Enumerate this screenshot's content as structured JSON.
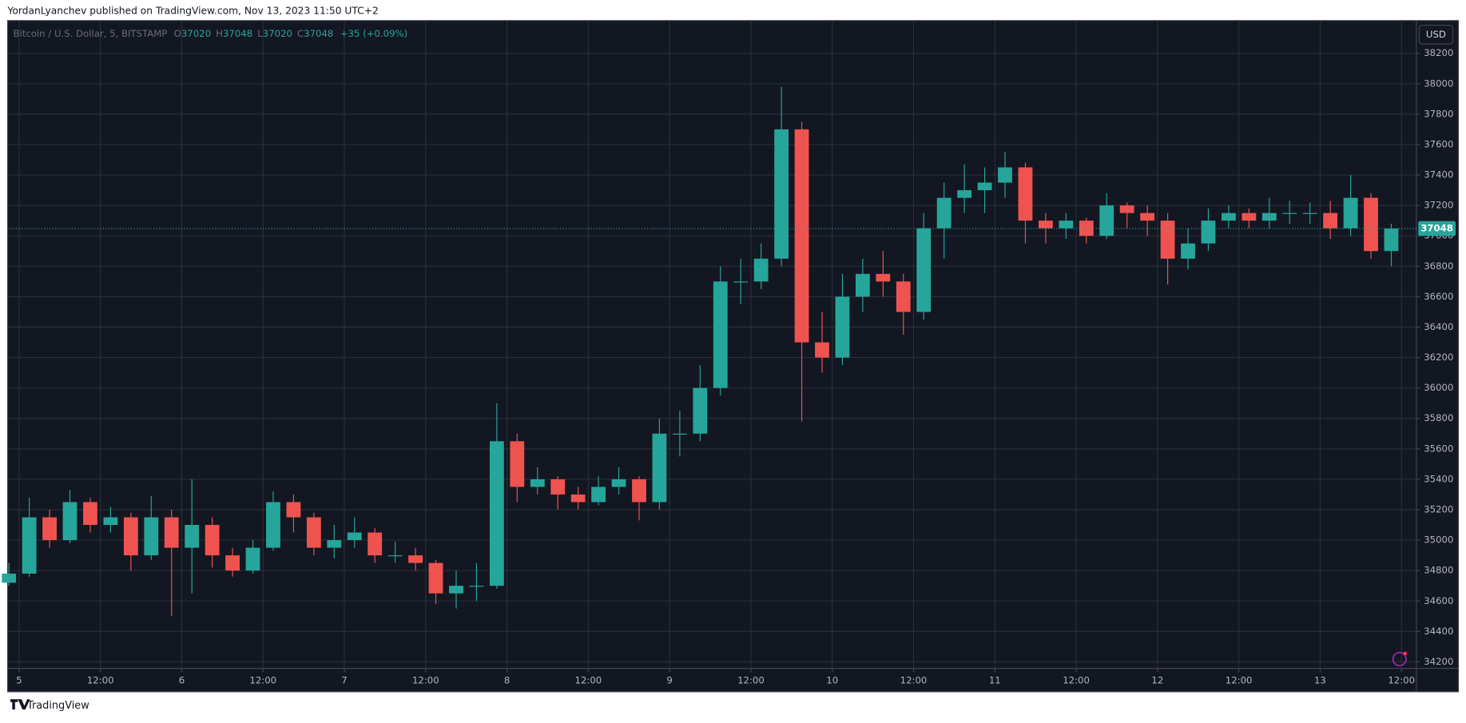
{
  "header": {
    "text": "YordanLyanchev published on TradingView.com, Nov 13, 2023 11:50 UTC+2"
  },
  "footer": {
    "logo": "TradingView"
  },
  "currency_button": "USD",
  "legend": {
    "symbol": "Bitcoin / U.S. Dollar, 5, BITSTAMP",
    "o": "O",
    "o_value": "37020",
    "h": "H",
    "h_value": "37048",
    "l": "L",
    "l_value": "37020",
    "c": "C",
    "c_value": "37048",
    "change": "+35 (+0.09%)"
  },
  "chart_data": {
    "type": "candlestick",
    "up_color": "#26a69a",
    "down_color": "#ef5350",
    "grid": true,
    "last_price": 37048,
    "xlim": [
      -1.7,
      206.2
    ],
    "ylim": [
      34157,
      38415
    ],
    "xticks": [
      {
        "value": 0,
        "label": "5"
      },
      {
        "value": 12,
        "label": "12:00"
      },
      {
        "value": 24,
        "label": "6"
      },
      {
        "value": 36,
        "label": "12:00"
      },
      {
        "value": 48,
        "label": "7"
      },
      {
        "value": 60,
        "label": "12:00"
      },
      {
        "value": 72,
        "label": "8"
      },
      {
        "value": 84,
        "label": "12:00"
      },
      {
        "value": 96,
        "label": "9"
      },
      {
        "value": 108,
        "label": "12:00"
      },
      {
        "value": 120,
        "label": "10"
      },
      {
        "value": 132,
        "label": "12:00"
      },
      {
        "value": 144,
        "label": "11"
      },
      {
        "value": 156,
        "label": "12:00"
      },
      {
        "value": 168,
        "label": "12"
      },
      {
        "value": 180,
        "label": "12:00"
      },
      {
        "value": 192,
        "label": "13"
      },
      {
        "value": 204,
        "label": "12:00"
      }
    ],
    "yticks": [
      34200,
      34400,
      34600,
      34800,
      35000,
      35200,
      35400,
      35600,
      35800,
      36000,
      36200,
      36400,
      36600,
      36800,
      37000,
      37200,
      37400,
      37600,
      37800,
      38000,
      38200
    ],
    "x": [
      -1.5,
      1.5,
      4.5,
      7.5,
      10.5,
      13.5,
      16.5,
      19.5,
      22.5,
      25.5,
      28.5,
      31.5,
      34.5,
      37.5,
      40.5,
      43.5,
      46.5,
      49.5,
      52.5,
      55.5,
      58.5,
      61.5,
      64.5,
      67.5,
      70.5,
      73.5,
      76.5,
      79.5,
      82.5,
      85.5,
      88.5,
      91.5,
      94.5,
      97.5,
      100.5,
      103.5,
      106.5,
      109.5,
      112.5,
      115.5,
      118.5,
      121.5,
      124.5,
      127.5,
      130.5,
      133.5,
      136.5,
      139.5,
      142.5,
      145.5,
      148.5,
      151.5,
      154.5,
      157.5,
      160.5,
      163.5,
      166.5,
      169.5,
      172.5,
      175.5,
      178.5,
      181.5,
      184.5,
      187.5,
      190.5,
      193.5,
      196.5,
      199.5,
      202.5
    ],
    "open": [
      34720,
      34780,
      35150,
      35000,
      35250,
      35100,
      35150,
      34900,
      35150,
      34950,
      35100,
      34900,
      34800,
      34950,
      35250,
      35150,
      34950,
      35000,
      35050,
      34900,
      34900,
      34850,
      34650,
      34700,
      34700,
      35650,
      35350,
      35400,
      35300,
      35250,
      35350,
      35400,
      35250,
      35700,
      35700,
      36000,
      36700,
      36700,
      36850,
      37700,
      36300,
      36200,
      36600,
      36750,
      36700,
      36500,
      37050,
      37250,
      37300,
      37350,
      37450,
      37100,
      37050,
      37100,
      37000,
      37200,
      37150,
      37100,
      36850,
      36950,
      37100,
      37150,
      37100,
      37150,
      37150,
      37150,
      37050,
      37250,
      36900
    ],
    "high": [
      34850,
      35280,
      35200,
      35330,
      35280,
      35220,
      35180,
      35290,
      35200,
      35400,
      35150,
      34950,
      35000,
      35320,
      35300,
      35180,
      35100,
      35150,
      35080,
      34990,
      34950,
      34870,
      34800,
      34850,
      35900,
      35700,
      35480,
      35420,
      35350,
      35420,
      35480,
      35420,
      35800,
      35850,
      36150,
      36800,
      36850,
      36950,
      37980,
      37750,
      36500,
      36750,
      36850,
      36900,
      36750,
      37150,
      37350,
      37470,
      37450,
      37550,
      37480,
      37150,
      37150,
      37120,
      37280,
      37220,
      37200,
      37150,
      37050,
      37180,
      37200,
      37180,
      37250,
      37230,
      37220,
      37230,
      37400,
      37280,
      37080
    ],
    "low": [
      34700,
      34760,
      34950,
      34980,
      35050,
      35050,
      34800,
      34870,
      34500,
      34650,
      34820,
      34760,
      34780,
      34930,
      35050,
      34900,
      34880,
      34950,
      34850,
      34850,
      34800,
      34580,
      34550,
      34600,
      34680,
      35250,
      35300,
      35200,
      35200,
      35230,
      35300,
      35130,
      35200,
      35550,
      35650,
      35950,
      36550,
      36650,
      36800,
      35780,
      36100,
      36150,
      36500,
      36600,
      36350,
      36450,
      36850,
      37150,
      37150,
      37250,
      36950,
      36950,
      36980,
      36950,
      36980,
      37050,
      37000,
      36680,
      36780,
      36900,
      37050,
      37050,
      37050,
      37080,
      37080,
      36980,
      37000,
      36850,
      36800
    ],
    "close": [
      34780,
      35150,
      35000,
      35250,
      35100,
      35150,
      34900,
      35150,
      34950,
      35100,
      34900,
      34800,
      34950,
      35250,
      35150,
      34950,
      35000,
      35050,
      34900,
      34900,
      34850,
      34650,
      34700,
      34700,
      35650,
      35350,
      35400,
      35300,
      35250,
      35350,
      35400,
      35250,
      35700,
      35700,
      36000,
      36700,
      36700,
      36850,
      37700,
      36300,
      36200,
      36600,
      36750,
      36700,
      36500,
      37050,
      37250,
      37300,
      37350,
      37450,
      37100,
      37050,
      37100,
      37000,
      37200,
      37150,
      37100,
      36850,
      36950,
      37100,
      37150,
      37100,
      37150,
      37150,
      37150,
      37050,
      37250,
      36900,
      37048
    ]
  }
}
